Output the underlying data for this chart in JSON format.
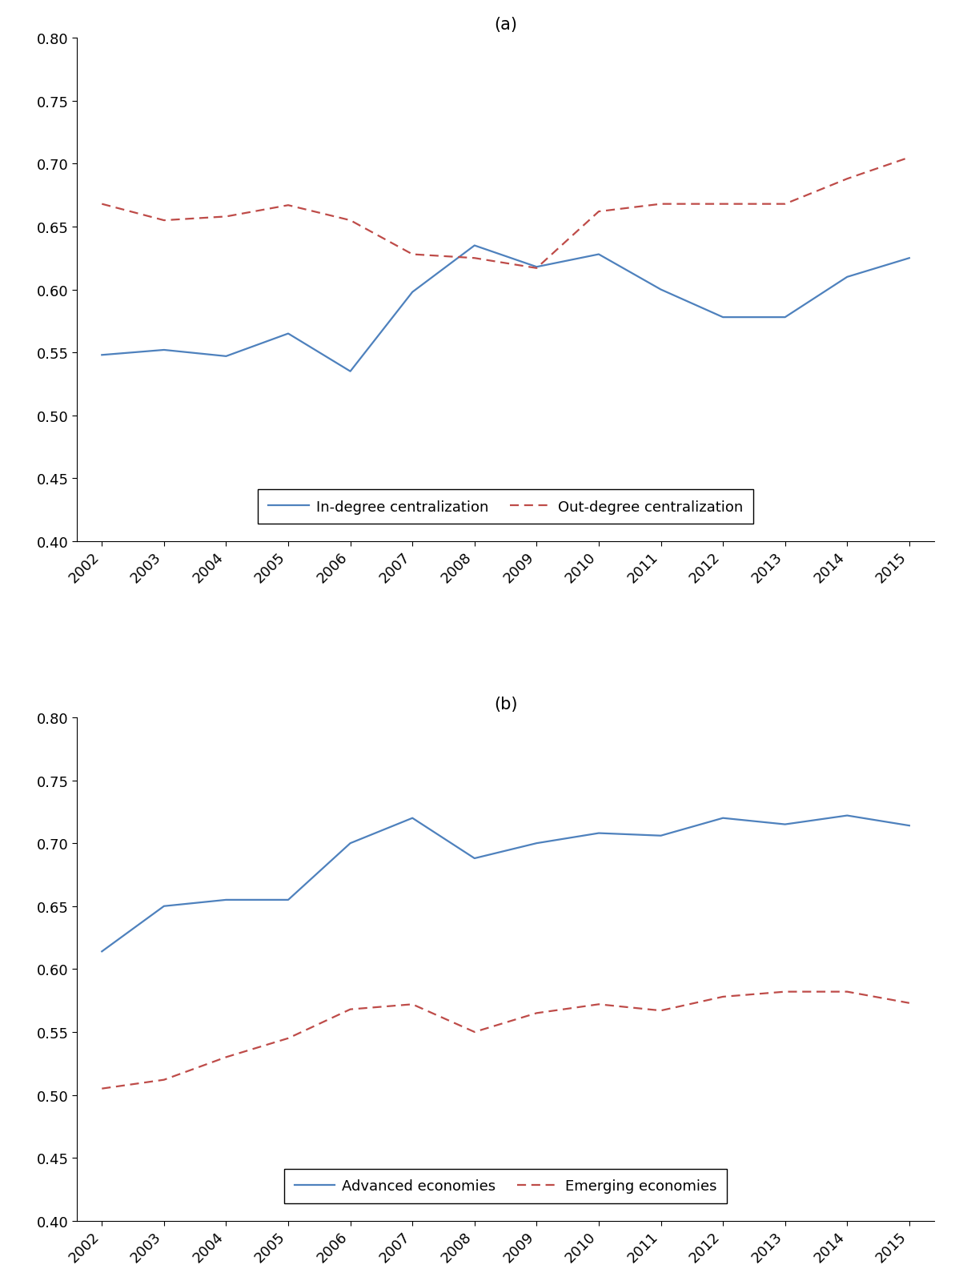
{
  "years": [
    2002,
    2003,
    2004,
    2005,
    2006,
    2007,
    2008,
    2009,
    2010,
    2011,
    2012,
    2013,
    2014,
    2015
  ],
  "panel_a": {
    "title": "(a)",
    "in_degree": [
      0.548,
      0.552,
      0.547,
      0.565,
      0.535,
      0.598,
      0.635,
      0.618,
      0.628,
      0.6,
      0.578,
      0.578,
      0.61,
      0.625
    ],
    "out_degree": [
      0.668,
      0.655,
      0.658,
      0.667,
      0.655,
      0.628,
      0.625,
      0.617,
      0.662,
      0.668,
      0.668,
      0.668,
      0.688,
      0.705
    ],
    "in_label": "In-degree centralization",
    "out_label": "Out-degree centralization",
    "ylim": [
      0.4,
      0.8
    ],
    "yticks": [
      0.4,
      0.45,
      0.5,
      0.55,
      0.6,
      0.65,
      0.7,
      0.75,
      0.8
    ]
  },
  "panel_b": {
    "title": "(b)",
    "advanced": [
      0.614,
      0.65,
      0.655,
      0.655,
      0.7,
      0.72,
      0.688,
      0.7,
      0.708,
      0.706,
      0.72,
      0.715,
      0.722,
      0.714
    ],
    "emerging": [
      0.505,
      0.512,
      0.53,
      0.545,
      0.568,
      0.572,
      0.55,
      0.565,
      0.572,
      0.567,
      0.578,
      0.582,
      0.582,
      0.573
    ],
    "adv_label": "Advanced economies",
    "emg_label": "Emerging economies",
    "ylim": [
      0.4,
      0.8
    ],
    "yticks": [
      0.4,
      0.45,
      0.5,
      0.55,
      0.6,
      0.65,
      0.7,
      0.75,
      0.8
    ]
  },
  "blue_color": "#4E81BD",
  "red_color": "#BE4B48",
  "line_width": 1.6,
  "background_color": "#FFFFFF",
  "tick_fontsize": 13,
  "legend_fontsize": 13,
  "title_fontsize": 15
}
